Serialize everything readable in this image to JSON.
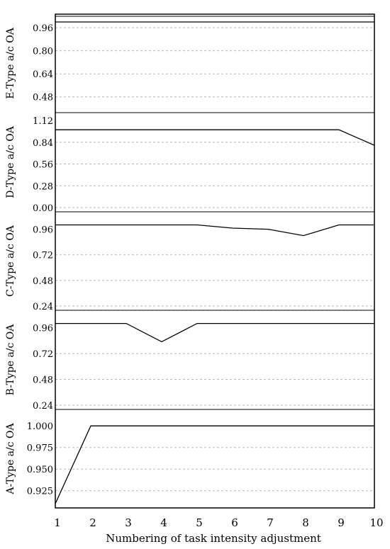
{
  "chart_data": {
    "type": "line",
    "xlabel": "Numbering of task intensity adjustment",
    "x": [
      1,
      2,
      3,
      4,
      5,
      6,
      7,
      8,
      9,
      10
    ],
    "xlim": [
      1,
      10
    ],
    "grid": "horizontal dashed",
    "panels": [
      {
        "name": "E",
        "ylabel": "E-Type a/c OA",
        "ticks": [
          "0.96",
          "0.80",
          "0.64",
          "0.48"
        ],
        "tick_values": [
          0.96,
          0.8,
          0.64,
          0.48
        ],
        "ylim": [
          0.4,
          1.0
        ],
        "values": [
          1.0,
          1.0,
          1.0,
          1.0,
          1.0,
          1.0,
          1.0,
          1.0,
          1.0,
          1.0
        ]
      },
      {
        "name": "D",
        "ylabel": "D-Type a/c OA",
        "ticks": [
          "1.12",
          "0.84",
          "0.56",
          "0.28",
          "0.00"
        ],
        "tick_values": [
          1.12,
          0.84,
          0.56,
          0.28,
          0.0
        ],
        "ylim": [
          0.0,
          1.12
        ],
        "values": [
          1.0,
          1.0,
          1.0,
          1.0,
          1.0,
          1.0,
          1.0,
          1.0,
          1.0,
          0.8
        ]
      },
      {
        "name": "C",
        "ylabel": "C-Type a/c OA",
        "ticks": [
          "0.96",
          "0.72",
          "0.48",
          "0.24"
        ],
        "tick_values": [
          0.96,
          0.72,
          0.48,
          0.24
        ],
        "ylim": [
          0.24,
          1.05
        ],
        "values": [
          1.0,
          1.0,
          1.0,
          1.0,
          1.0,
          0.97,
          0.96,
          0.9,
          1.0,
          1.0
        ]
      },
      {
        "name": "B",
        "ylabel": "B-Type a/c OA",
        "ticks": [
          "0.96",
          "0.72",
          "0.48",
          "0.24"
        ],
        "tick_values": [
          0.96,
          0.72,
          0.48,
          0.24
        ],
        "ylim": [
          0.24,
          1.05
        ],
        "values": [
          1.0,
          1.0,
          1.0,
          0.83,
          1.0,
          1.0,
          1.0,
          1.0,
          1.0,
          1.0
        ]
      },
      {
        "name": "A",
        "ylabel": "A-Type a/c OA",
        "ticks": [
          "1.000",
          "0.975",
          "0.950",
          "0.925"
        ],
        "tick_values": [
          1.0,
          0.975,
          0.95,
          0.925
        ],
        "ylim": [
          0.91,
          1.01
        ],
        "values": [
          0.91,
          1.0,
          1.0,
          1.0,
          1.0,
          1.0,
          1.0,
          1.0,
          1.0,
          1.0
        ]
      }
    ]
  }
}
